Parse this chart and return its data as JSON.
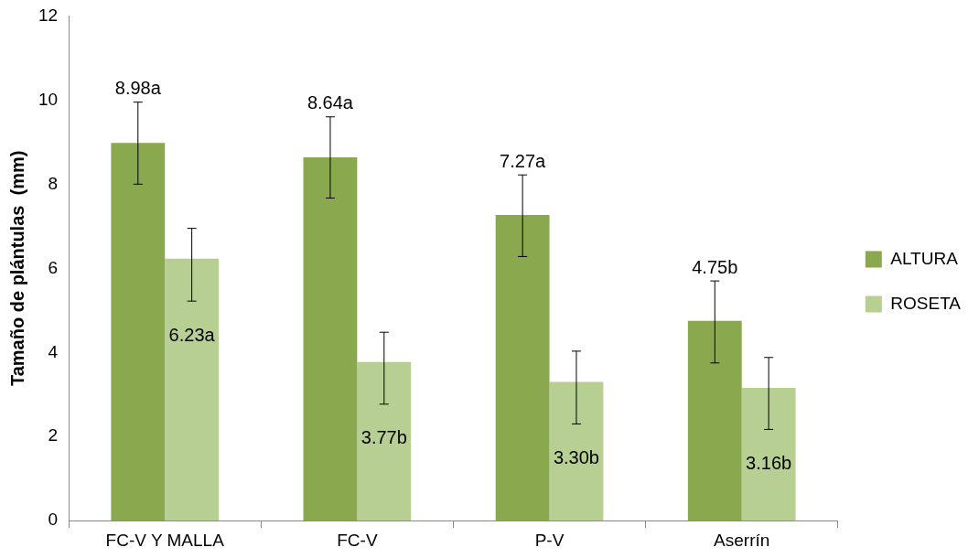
{
  "chart_data": {
    "type": "bar",
    "ylabel": "Tamaño de plántulas  (mm)",
    "categories": [
      "FC-V Y MALLA",
      "FC-V",
      "P-V",
      "Aserrín"
    ],
    "series": [
      {
        "name": "ALTURA",
        "color": "#8aa84e",
        "values": [
          8.98,
          8.64,
          7.27,
          4.75
        ],
        "errors": [
          [
            8.0,
            9.95
          ],
          [
            7.67,
            9.6
          ],
          [
            6.28,
            8.22
          ],
          [
            3.75,
            5.7
          ]
        ],
        "value_labels": [
          "8.98a",
          "8.64a",
          "7.27a",
          "4.75b"
        ]
      },
      {
        "name": "ROSETA",
        "color": "#b8cf94",
        "values": [
          6.23,
          3.77,
          3.3,
          3.16
        ],
        "errors": [
          [
            5.22,
            6.95
          ],
          [
            2.77,
            4.48
          ],
          [
            2.3,
            4.03
          ],
          [
            2.17,
            3.88
          ]
        ],
        "value_labels": [
          "6.23a",
          "3.77b",
          "3.30b",
          "3.16b"
        ]
      }
    ],
    "ylim": [
      0,
      12
    ],
    "yticks": [
      0,
      2,
      4,
      6,
      8,
      10,
      12
    ],
    "grid": false,
    "legend": "right"
  }
}
